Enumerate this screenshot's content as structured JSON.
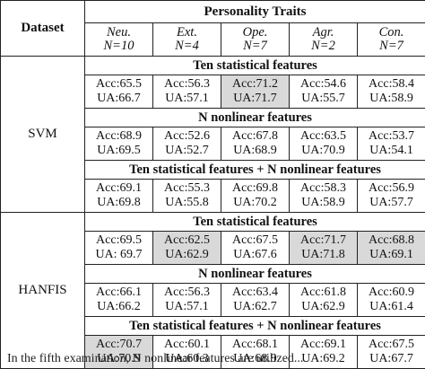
{
  "header": {
    "dataset_label": "Dataset",
    "group_label": "Personality Traits",
    "traits": [
      {
        "name": "Neu.",
        "n": "N=10"
      },
      {
        "name": "Ext.",
        "n": "N=4"
      },
      {
        "name": "Ope.",
        "n": "N=7"
      },
      {
        "name": "Agr.",
        "n": "N=2"
      },
      {
        "name": "Con.",
        "n": "N=7"
      }
    ]
  },
  "highlight_color": "#d9d9d9",
  "blocks": [
    {
      "dataset": "SVM",
      "sections": [
        {
          "title": "Ten statistical features",
          "cells": [
            {
              "acc": "Acc:65.5",
              "ua": "UA:66.7",
              "hl": false
            },
            {
              "acc": "Acc:56.3",
              "ua": "UA:57.1",
              "hl": false
            },
            {
              "acc": "Acc:71.2",
              "ua": "UA:71.7",
              "hl": true
            },
            {
              "acc": "Acc:54.6",
              "ua": "UA:55.7",
              "hl": false
            },
            {
              "acc": "Acc:58.4",
              "ua": "UA:58.9",
              "hl": false
            }
          ]
        },
        {
          "title": "N nonlinear features",
          "cells": [
            {
              "acc": "Acc:68.9",
              "ua": "UA:69.5",
              "hl": false
            },
            {
              "acc": "Acc:52.6",
              "ua": "UA:52.7",
              "hl": false
            },
            {
              "acc": "Acc:67.8",
              "ua": "UA:68.9",
              "hl": false
            },
            {
              "acc": "Acc:63.5",
              "ua": "UA:70.9",
              "hl": false
            },
            {
              "acc": "Acc:53.7",
              "ua": "UA:54.1",
              "hl": false
            }
          ]
        },
        {
          "title": "Ten statistical features + N nonlinear features",
          "cells": [
            {
              "acc": "Acc:69.1",
              "ua": "UA:69.8",
              "hl": false
            },
            {
              "acc": "Acc:55.3",
              "ua": "UA:55.8",
              "hl": false
            },
            {
              "acc": "Acc:69.8",
              "ua": "UA:70.2",
              "hl": false
            },
            {
              "acc": "Acc:58.3",
              "ua": "UA:58.9",
              "hl": false
            },
            {
              "acc": "Acc:56.9",
              "ua": "UA:57.7",
              "hl": false
            }
          ]
        }
      ]
    },
    {
      "dataset": "HANFIS",
      "sections": [
        {
          "title": "Ten statistical features",
          "cells": [
            {
              "acc": "Acc:69.5",
              "ua": "UA: 69.7",
              "hl": false
            },
            {
              "acc": "Acc:62.5",
              "ua": "UA:62.9",
              "hl": true
            },
            {
              "acc": "Acc:67.5",
              "ua": "UA:67.6",
              "hl": false
            },
            {
              "acc": "Acc:71.7",
              "ua": "UA:71.8",
              "hl": true
            },
            {
              "acc": "Acc:68.8",
              "ua": "UA:69.1",
              "hl": true
            }
          ]
        },
        {
          "title": "N nonlinear features",
          "cells": [
            {
              "acc": "Acc:66.1",
              "ua": "UA:66.2",
              "hl": false
            },
            {
              "acc": "Acc:56.3",
              "ua": "UA:57.1",
              "hl": false
            },
            {
              "acc": "Acc:63.4",
              "ua": "UA:62.7",
              "hl": false
            },
            {
              "acc": "Acc:61.8",
              "ua": "UA:62.9",
              "hl": false
            },
            {
              "acc": "Acc:60.9",
              "ua": "UA:61.4",
              "hl": false
            }
          ]
        },
        {
          "title": "Ten statistical features + N nonlinear features",
          "cells": [
            {
              "acc": "Acc:70.7",
              "ua": "UA:70.9",
              "hl": true
            },
            {
              "acc": "Acc:60.1",
              "ua": "UA:60.3",
              "hl": false
            },
            {
              "acc": "Acc:68.1",
              "ua": "UA:68.9",
              "hl": false
            },
            {
              "acc": "Acc:69.1",
              "ua": "UA:69.2",
              "hl": false
            },
            {
              "acc": "Acc:67.5",
              "ua": "UA:67.7",
              "hl": false
            }
          ]
        }
      ]
    }
  ],
  "caption": "In the fifth examination, N nonlinear features are utilized..."
}
